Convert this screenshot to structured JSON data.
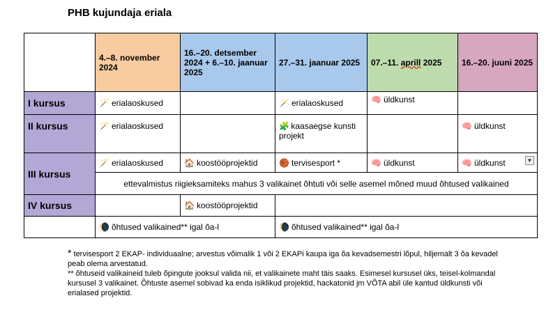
{
  "title": "PHB kujundaja eriala",
  "periods": [
    {
      "label": "4.–8. november 2024",
      "color": "#f8cca0"
    },
    {
      "label": "16.–20. detsember 2024 + 6.–10. jaanuar 2025",
      "color": "#a9c9ec"
    },
    {
      "label": "27.–31. jaanuar 2025",
      "color": "#a9c9ec"
    },
    {
      "label_a": "07.–11. ",
      "label_b": "aprill",
      "label_c": " 2025",
      "color": "#bddbac"
    },
    {
      "label": "16.–20. juuni 2025",
      "color": "#d6a7bf"
    }
  ],
  "rows": {
    "i_kursus": "I kursus",
    "ii_kursus": "II kursus",
    "iii_kursus": "III kursus",
    "iv_kursus": "IV kursus"
  },
  "cells": {
    "erialaoskused": "erialaoskused",
    "yldkunst": "üldkunst",
    "kaasaegse": "kaasaegse kunsti projekt",
    "koostoo": "koostööprojektid",
    "tervisesport": "tervisesport *",
    "iii_row2": "ettevalmistus riigieksamiteks mahus 3 valikainet õhtuti või selle asemel mõned muud õhtused valikained",
    "ohtused_left": "õhtused valikained** igal õa-l",
    "ohtused_right": "õhtused valikained** igal õa-l"
  },
  "notes": {
    "star": "*",
    "line1": " tervisesport 2 EKAP-   individuaalne; arvestus võimalik 1 või 2 EKAPi kaupa iga õa kevadsemestri lõpul, hiljemalt 3 õa kevadel peab olema arvestatud.",
    "line2": "** õhtuseid valikaineid tuleb õpingute jooksul valida nii, et valikainete maht täis saaks. Esimesel kursusel üks, teisel-kolmandal kursusel 3 valikainet. Õhtuste asemel sobivad ka enda isiklikud projektid, hackatonid jm VÕTA abil üle kantud üldkunsti või erialased projektid."
  },
  "icons": {
    "wand": "wand-icon",
    "brain": "brain-icon",
    "puzzle": "puzzle-icon",
    "ball": "basketball-icon",
    "moon": "moon-icon",
    "house": "toy-house-icon"
  }
}
